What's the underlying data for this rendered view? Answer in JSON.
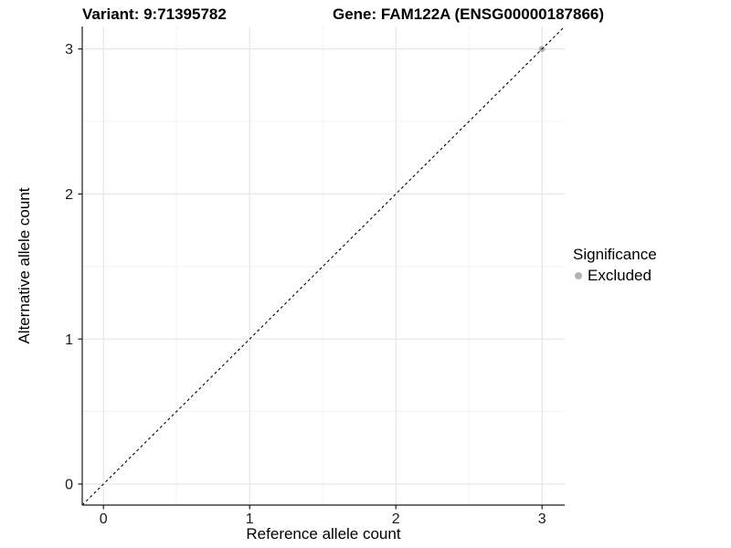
{
  "header": {
    "variant_title": "Variant: 9:71395782",
    "gene_title": "Gene: FAM122A (ENSG00000187866)"
  },
  "chart_data": {
    "type": "scatter",
    "title_left": "Variant: 9:71395782",
    "title_right": "Gene: FAM122A (ENSG00000187866)",
    "xlabel": "Reference allele count",
    "ylabel": "Alternative allele count",
    "xlim": [
      -0.145,
      3.155
    ],
    "ylim": [
      -0.145,
      3.155
    ],
    "xticks": [
      0,
      1,
      2,
      3
    ],
    "yticks": [
      0,
      1,
      2,
      3
    ],
    "minor_ticks": [
      0.5,
      1.5,
      2.5
    ],
    "grid": true,
    "legend_position": "right",
    "reference_line": {
      "type": "identity",
      "slope": 1,
      "intercept": 0,
      "style": "dashed",
      "color": "#000000"
    },
    "series": [
      {
        "name": "Excluded",
        "color": "#b3b3b3",
        "points": [
          {
            "x": 3,
            "y": 3
          }
        ]
      }
    ],
    "legend": {
      "title": "Significance",
      "items": [
        {
          "label": "Excluded",
          "color": "#b3b3b3"
        }
      ]
    }
  },
  "colors": {
    "background": "#ffffff",
    "panel_background": "#ffffff",
    "grid_major": "#e6e6e6",
    "grid_minor": "#f3f3f3",
    "axis_line": "#1a1a1a",
    "tick_label": "#1a1a1a",
    "point": "#b3b3b3"
  }
}
